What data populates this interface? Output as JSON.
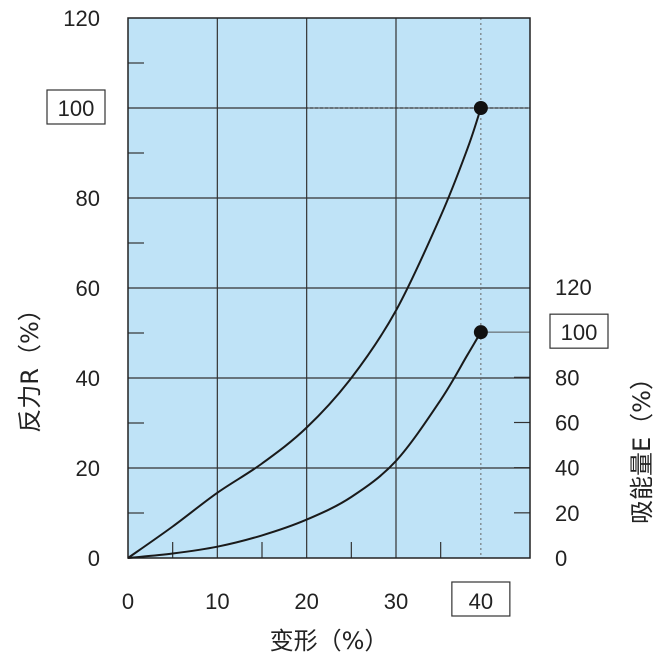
{
  "chart_data": {
    "type": "line",
    "xlabel": "变形（%）",
    "ylabel_left": "反力R（%）",
    "ylabel_right": "吸能量E（%）",
    "x_ticks": [
      "0",
      "10",
      "20",
      "30"
    ],
    "x_highlight": "40",
    "xlim": [
      0,
      45
    ],
    "left_ylim": [
      0,
      120
    ],
    "left_ticks": [
      "0",
      "20",
      "40",
      "60",
      "80",
      "120"
    ],
    "left_highlight": "100",
    "right_ylim": [
      0,
      120
    ],
    "right_ticks": [
      "0",
      "20",
      "40",
      "60",
      "80",
      "120"
    ],
    "right_highlight": "100",
    "grid": true,
    "background_color": "#bfe3f7",
    "line_color": "#1a1a1a",
    "series": [
      {
        "axis": "left",
        "x": [
          0,
          5,
          10,
          15,
          20,
          25,
          30,
          35,
          38,
          39.5
        ],
        "y": [
          0,
          7,
          14.5,
          21,
          29,
          40,
          55,
          76,
          91,
          100
        ],
        "endpoint_marker": true
      },
      {
        "axis": "right",
        "x": [
          0,
          5,
          10,
          15,
          20,
          25,
          30,
          35,
          38,
          39.5
        ],
        "y": [
          0,
          2,
          5,
          10,
          17,
          27,
          43,
          70,
          90,
          100
        ],
        "endpoint_marker": true
      }
    ]
  }
}
